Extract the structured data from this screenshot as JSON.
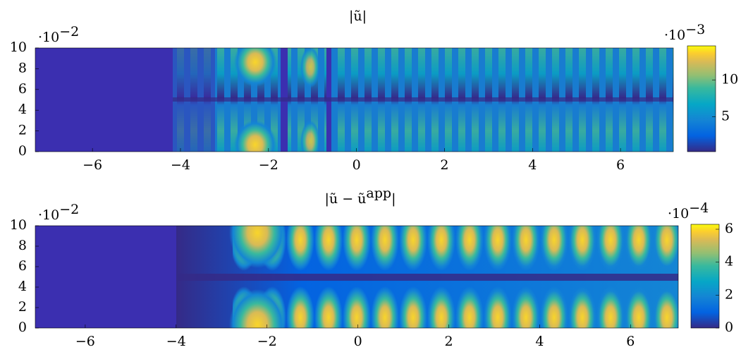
{
  "chart_data": [
    {
      "type": "heatmap",
      "title": "|ũ|",
      "xlim": [
        -7.3,
        7.2
      ],
      "xticks": [
        {
          "value": -6,
          "label": "−6"
        },
        {
          "value": -4,
          "label": "−4"
        },
        {
          "value": -2,
          "label": "−2"
        },
        0,
        2,
        4,
        6
      ],
      "ylim": [
        0,
        10
      ],
      "yticks": [
        0,
        2,
        4,
        6,
        8,
        10
      ],
      "y_multiplier": {
        "base": "·10",
        "exponent": "−2"
      },
      "colorbar": {
        "clim": [
          0.3,
          14.6
        ],
        "ticks": [
          5,
          10
        ],
        "multiplier": {
          "base": "·10",
          "exponent": "−3"
        }
      }
    },
    {
      "type": "heatmap",
      "title": "|ũ − ũ",
      "title_superscript": "app",
      "title_end": "|",
      "xlim": [
        -7.1,
        7.05
      ],
      "xticks": [
        {
          "value": -6,
          "label": "−6"
        },
        {
          "value": -4,
          "label": "−4"
        },
        {
          "value": -2,
          "label": "−2"
        },
        0,
        2,
        4,
        6
      ],
      "ylim": [
        0,
        10
      ],
      "yticks": [
        0,
        2,
        4,
        6,
        8,
        10
      ],
      "y_multiplier": {
        "base": "·10",
        "exponent": "−2"
      },
      "colorbar": {
        "clim": [
          0,
          6.3
        ],
        "ticks": [
          0,
          2,
          4,
          6
        ],
        "multiplier": {
          "base": "·10",
          "exponent": "−4"
        }
      }
    }
  ]
}
